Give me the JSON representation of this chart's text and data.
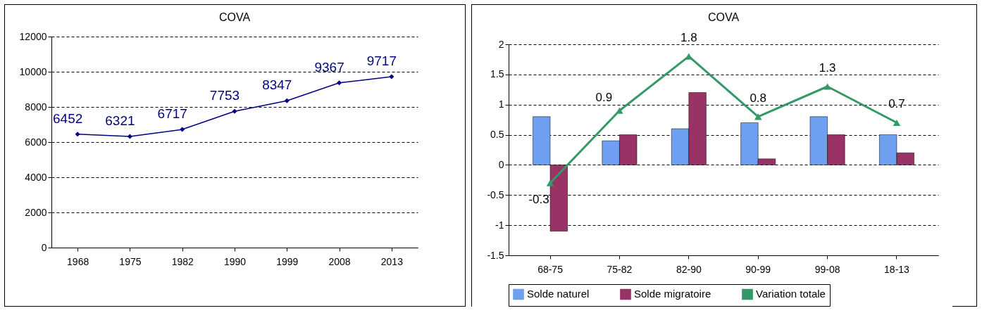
{
  "chart_data": [
    {
      "type": "line",
      "title": "COVA",
      "categories": [
        "1968",
        "1975",
        "1982",
        "1990",
        "1999",
        "2008",
        "2013"
      ],
      "values": [
        6452,
        6321,
        6717,
        7753,
        8347,
        9367,
        9717
      ],
      "color": "#000080",
      "marker": "diamond",
      "ylim": [
        0,
        12000
      ],
      "yticks": [
        0,
        2000,
        4000,
        6000,
        8000,
        10000,
        12000
      ],
      "grid": "y",
      "data_labels": true
    },
    {
      "type": "bar",
      "title": "COVA",
      "categories": [
        "68-75",
        "75-82",
        "82-90",
        "90-99",
        "99-08",
        "18-13"
      ],
      "series": [
        {
          "name": "Solde naturel",
          "color": "#6f9ff0",
          "values": [
            0.8,
            0.4,
            0.6,
            0.7,
            0.8,
            0.5
          ]
        },
        {
          "name": "Solde migratoire",
          "color": "#993366",
          "values": [
            -1.1,
            0.5,
            1.2,
            0.1,
            0.5,
            0.2
          ]
        },
        {
          "name": "Variation totale",
          "type": "line",
          "marker": "triangle",
          "color": "#339966",
          "values": [
            -0.3,
            0.9,
            1.8,
            0.8,
            1.3,
            0.7
          ],
          "value_labels": [
            "-0.3",
            "0.9",
            "1.8",
            "0.8",
            "1.3",
            "0.7"
          ]
        }
      ],
      "ylim": [
        -1.5,
        2
      ],
      "yticks": [
        -1.5,
        -1,
        -0.5,
        0,
        0.5,
        1,
        1.5,
        2
      ],
      "grid": "y",
      "legend": "bottom"
    }
  ]
}
